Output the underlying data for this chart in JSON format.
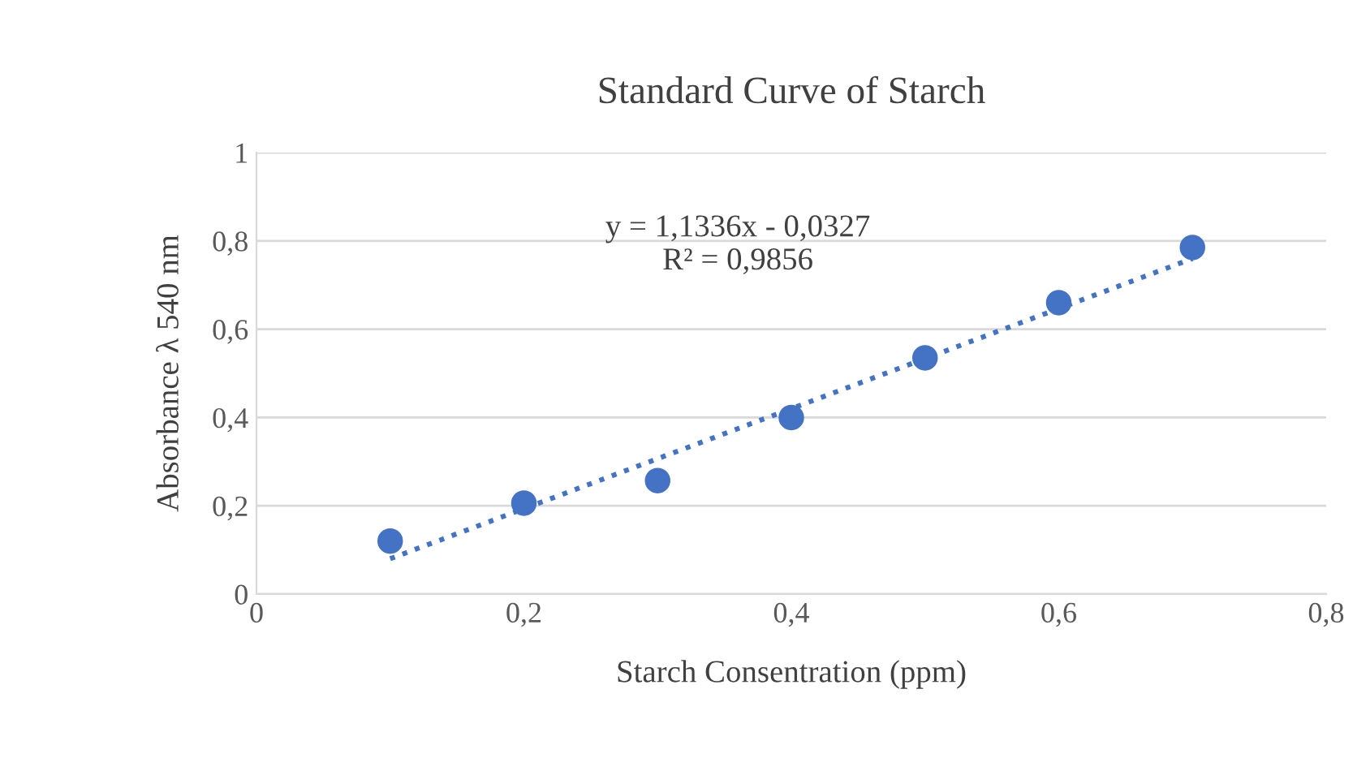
{
  "chart_data": {
    "type": "scatter",
    "title": "Standard Curve of Starch",
    "xlabel": "Starch Consentration (ppm)",
    "ylabel": "Absorbance λ 540 nm",
    "series": [
      {
        "color": "#4472c4",
        "marker": "circle",
        "x": [
          0.1,
          0.2,
          0.3,
          0.4,
          0.5,
          0.6,
          0.7
        ],
        "values": [
          0.12,
          0.206,
          0.257,
          0.4,
          0.535,
          0.66,
          0.785
        ]
      },
      {
        "type": "line",
        "color": "#4472c4",
        "marker": "none",
        "line_style": "dotted",
        "x": [
          0.1,
          0.7
        ],
        "values": [
          0.08,
          0.76
        ]
      }
    ],
    "annotations": [
      "y = 1,1336x - 0,0327",
      "R² = 0,9856"
    ],
    "xlim": [
      0,
      0.8
    ],
    "xticks": [
      0,
      {
        "value": 0.2,
        "label": "0,2"
      },
      {
        "value": 0.4,
        "label": "0,4"
      },
      {
        "value": 0.6,
        "label": "0,6"
      },
      {
        "value": 0.8,
        "label": "0,8"
      }
    ],
    "ylim": [
      0,
      1
    ],
    "yticks": [
      0,
      {
        "value": 0.2,
        "label": "0,2"
      },
      {
        "value": 0.4,
        "label": "0,4"
      },
      {
        "value": 0.6,
        "label": "0,6"
      },
      {
        "value": 0.8,
        "label": "0,8"
      },
      1
    ],
    "grid": "y",
    "legend": false
  }
}
